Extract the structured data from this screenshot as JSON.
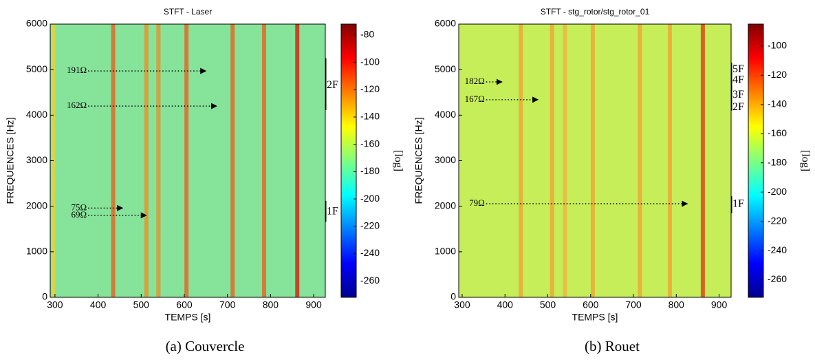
{
  "chart_data": [
    {
      "type": "spectrogram",
      "title": "STFT - Laser",
      "xlabel": "TEMPS [s]",
      "ylabel": "FREQUENCES [Hz]",
      "xlim": [
        289,
        927
      ],
      "ylim": [
        0,
        6000
      ],
      "xticks": [
        300,
        400,
        500,
        600,
        700,
        800,
        900
      ],
      "yticks": [
        0,
        1000,
        2000,
        3000,
        4000,
        5000,
        6000
      ],
      "background_color": "#86e39a",
      "stripes": [
        {
          "x": 296,
          "color": "#f2d030"
        },
        {
          "x": 435,
          "color": "#ec5a1a"
        },
        {
          "x": 512,
          "color": "#f08a20"
        },
        {
          "x": 540,
          "color": "#f08a20"
        },
        {
          "x": 605,
          "color": "#ec5a1a"
        },
        {
          "x": 712,
          "color": "#ec5a1a"
        },
        {
          "x": 785,
          "color": "#ec5a1a"
        },
        {
          "x": 862,
          "color": "#d81000"
        }
      ],
      "annotations": [
        {
          "label": "191Ω",
          "y": 4970,
          "x_start": 377,
          "x_end": 650
        },
        {
          "label": "162Ω",
          "y": 4200,
          "x_start": 377,
          "x_end": 675
        },
        {
          "label": "75Ω",
          "y": 1960,
          "x_start": 377,
          "x_end": 457
        },
        {
          "label": "69Ω",
          "y": 1800,
          "x_start": 377,
          "x_end": 512
        }
      ],
      "brackets": [
        {
          "y_start": 4110,
          "y_end": 5250
        },
        {
          "y_start": 1660,
          "y_end": 2120
        }
      ],
      "harmonic_labels": [
        {
          "label": "2F",
          "y": 4650
        },
        {
          "label": "1F",
          "y": 1880
        }
      ],
      "colorbar": {
        "label": "[log]",
        "colormap": "jet",
        "lim": [
          -272,
          -72
        ],
        "ticks": [
          -80,
          -100,
          -120,
          -140,
          -160,
          -180,
          -200,
          -220,
          -240,
          -260
        ]
      },
      "caption": "(a) Couvercle"
    },
    {
      "type": "spectrogram",
      "title": "STFT - stg_rotor/stg_rotor_01",
      "xlabel": "TEMPS [s]",
      "ylabel": "FREQUENCES [Hz]",
      "xlim": [
        292,
        928
      ],
      "ylim": [
        0,
        6000
      ],
      "xticks": [
        300,
        400,
        500,
        600,
        700,
        800,
        900
      ],
      "yticks": [
        0,
        1000,
        2000,
        3000,
        4000,
        5000,
        6000
      ],
      "background_color": "#c6ee58",
      "stripes": [
        {
          "x": 437,
          "color": "#f0a030"
        },
        {
          "x": 510,
          "color": "#f0a030"
        },
        {
          "x": 540,
          "color": "#f0b040"
        },
        {
          "x": 605,
          "color": "#f0a030"
        },
        {
          "x": 715,
          "color": "#f0a030"
        },
        {
          "x": 785,
          "color": "#f0a030"
        },
        {
          "x": 862,
          "color": "#e03010"
        }
      ],
      "annotations": [
        {
          "label": "182Ω",
          "y": 4730,
          "x_start": 356,
          "x_end": 393
        },
        {
          "label": "167Ω",
          "y": 4340,
          "x_start": 356,
          "x_end": 477
        },
        {
          "label": "79Ω",
          "y": 2055,
          "x_start": 356,
          "x_end": 826
        }
      ],
      "brackets": [
        {
          "y_start": 4100,
          "y_end": 5150
        },
        {
          "y_start": 1850,
          "y_end": 2220
        }
      ],
      "harmonic_labels": [
        {
          "label": "5F",
          "y": 5000
        },
        {
          "label": "4F",
          "y": 4760
        },
        {
          "label": "3F",
          "y": 4440
        },
        {
          "label": "2F",
          "y": 4170
        },
        {
          "label": "1F",
          "y": 2040
        }
      ],
      "colorbar": {
        "label": "[log]",
        "colormap": "jet",
        "lim": [
          -272,
          -85
        ],
        "ticks": [
          -100,
          -120,
          -140,
          -160,
          -180,
          -200,
          -220,
          -240,
          -260
        ]
      },
      "caption": "(b) Rouet"
    }
  ]
}
